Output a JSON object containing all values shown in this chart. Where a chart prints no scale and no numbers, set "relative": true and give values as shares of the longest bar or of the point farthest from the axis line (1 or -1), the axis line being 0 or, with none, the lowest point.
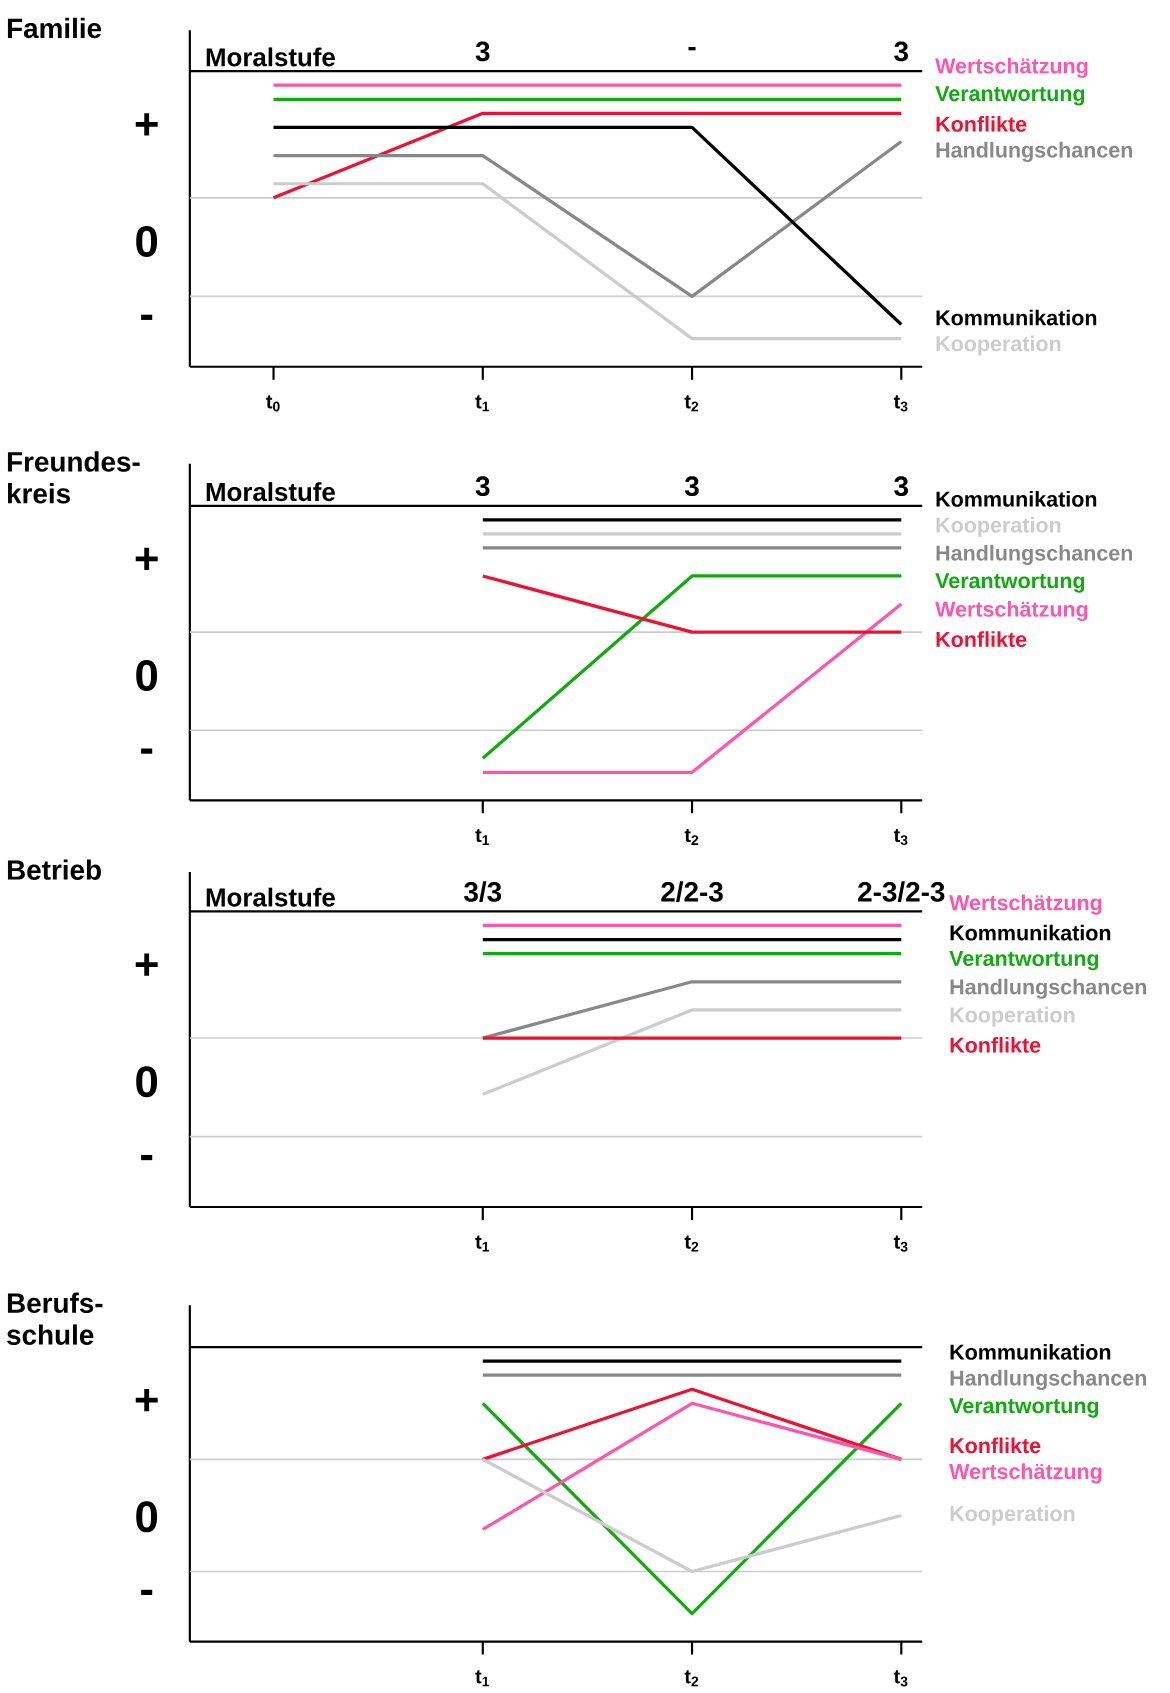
{
  "chart_data": [
    {
      "type": "line",
      "title": "Familie",
      "relative": true,
      "categories": [
        "t$_{0}$",
        "t$_{1}$",
        "t$_{2}$",
        "t$_{3}$"
      ],
      "series": [
        {
          "name": "Wertschätzung",
          "color": "#ff55aa",
          "values": [
            1.0,
            1.0,
            1.0,
            1.0
          ]
        },
        {
          "name": "Verantwortung",
          "color": "#11aa11",
          "values": [
            0.95,
            0.95,
            0.95,
            0.95
          ]
        },
        {
          "name": "Konflikte",
          "color": "#ee1133",
          "values": [
            0.6,
            0.9,
            0.9,
            0.9
          ]
        },
        {
          "name": "Handlungschancen",
          "color": "#888888",
          "values": [
            0.75,
            0.75,
            0.25,
            0.8
          ]
        },
        {
          "name": "Kommunikation",
          "color": "#000000",
          "values": [
            0.85,
            0.85,
            0.85,
            0.15
          ]
        },
        {
          "name": "Kooperation",
          "color": "#cccccc",
          "values": [
            0.65,
            0.65,
            0.1,
            0.1
          ]
        }
      ],
      "ref_lines": [
        {
          "axis": "y",
          "value": 1.05,
          "label": "Moralstufe",
          "color": "#000000"
        },
        {
          "axis": "y",
          "value": 0.6,
          "color": "#cccccc"
        },
        {
          "axis": "y",
          "value": 0.25,
          "color": "#cccccc"
        }
      ],
      "annotations": [
        "+",
        "0",
        "-",
        "3",
        "-",
        "3"
      ]
    },
    {
      "type": "line",
      "title": "Freundes-kreis",
      "relative": true,
      "categories": [
        null,
        "t$_{1}$",
        "t$_{2}$",
        "t$_{3}$"
      ],
      "series": [
        {
          "name": "Kommunikation",
          "color": "#000000",
          "values": [
            null,
            1.0,
            1.0,
            1.0
          ]
        },
        {
          "name": "Kooperation",
          "color": "#cccccc",
          "values": [
            null,
            0.95,
            0.95,
            0.95
          ]
        },
        {
          "name": "Handlungschancen",
          "color": "#888888",
          "values": [
            null,
            0.9,
            0.9,
            0.9
          ]
        },
        {
          "name": "Verantwortung",
          "color": "#11aa11",
          "values": [
            null,
            0.15,
            0.8,
            0.8
          ]
        },
        {
          "name": "Wertschätzung",
          "color": "#ff55aa",
          "values": [
            null,
            0.1,
            0.1,
            0.7
          ]
        },
        {
          "name": "Konflikte",
          "color": "#ee1133",
          "values": [
            null,
            0.8,
            0.6,
            0.6
          ]
        }
      ],
      "ref_lines": [
        {
          "axis": "y",
          "value": 1.05,
          "label": "Moralstufe",
          "color": "#000000"
        },
        {
          "axis": "y",
          "value": 0.6,
          "color": "#cccccc"
        },
        {
          "axis": "y",
          "value": 0.25,
          "color": "#cccccc"
        }
      ],
      "annotations": [
        "+",
        "0",
        "-",
        "3",
        "3",
        "3"
      ]
    },
    {
      "type": "line",
      "title": "Betrieb",
      "relative": true,
      "categories": [
        null,
        "t$_{1}$",
        "t$_{2}$",
        "t$_{3}$"
      ],
      "series": [
        {
          "name": "Wertschätzung",
          "color": "#ff55aa",
          "values": [
            null,
            1.0,
            1.0,
            1.0
          ]
        },
        {
          "name": "Kommunikation",
          "color": "#000000",
          "values": [
            null,
            0.95,
            0.95,
            0.95
          ]
        },
        {
          "name": "Verantwortung",
          "color": "#11aa11",
          "values": [
            null,
            0.9,
            0.9,
            0.9
          ]
        },
        {
          "name": "Handlungschancen",
          "color": "#888888",
          "values": [
            null,
            0.6,
            0.8,
            0.8
          ]
        },
        {
          "name": "Kooperation",
          "color": "#cccccc",
          "values": [
            null,
            0.4,
            0.7,
            0.7
          ]
        },
        {
          "name": "Konflikte",
          "color": "#ee1133",
          "values": [
            null,
            0.6,
            0.6,
            0.6
          ]
        }
      ],
      "ref_lines": [
        {
          "axis": "y",
          "value": 1.05,
          "label": "Moralstufe",
          "color": "#000000"
        },
        {
          "axis": "y",
          "value": 0.6,
          "color": "#cccccc"
        },
        {
          "axis": "y",
          "value": 0.25,
          "color": "#cccccc"
        }
      ],
      "annotations": [
        "+",
        "0",
        "-",
        "3/3",
        "2/2-3",
        "2-3/2-3"
      ]
    },
    {
      "type": "line",
      "title": "Berufs-schule",
      "relative": true,
      "categories": [
        null,
        "t$_{1}$",
        "t$_{2}$",
        "t$_{3}$"
      ],
      "series": [
        {
          "name": "Kommunikation",
          "color": "#000000",
          "values": [
            null,
            1.0,
            1.0,
            1.0
          ]
        },
        {
          "name": "Handlungschancen",
          "color": "#888888",
          "values": [
            null,
            0.95,
            0.95,
            0.95
          ]
        },
        {
          "name": "Verantwortung",
          "color": "#11aa11",
          "values": [
            null,
            0.85,
            0.1,
            0.85
          ]
        },
        {
          "name": "Konflikte",
          "color": "#ee1133",
          "values": [
            null,
            0.65,
            0.9,
            0.65
          ]
        },
        {
          "name": "Wertschätzung",
          "color": "#ff55aa",
          "values": [
            null,
            0.4,
            0.85,
            0.65
          ]
        },
        {
          "name": "Kooperation",
          "color": "#cccccc",
          "values": [
            null,
            0.65,
            0.25,
            0.45
          ]
        }
      ],
      "ref_lines": [
        {
          "axis": "y",
          "value": 1.05,
          "color": "#000000"
        },
        {
          "axis": "y",
          "value": 0.65,
          "color": "#cccccc"
        },
        {
          "axis": "y",
          "value": 0.25,
          "color": "#cccccc"
        }
      ],
      "annotations": [
        "+",
        "0",
        "-"
      ]
    }
  ]
}
